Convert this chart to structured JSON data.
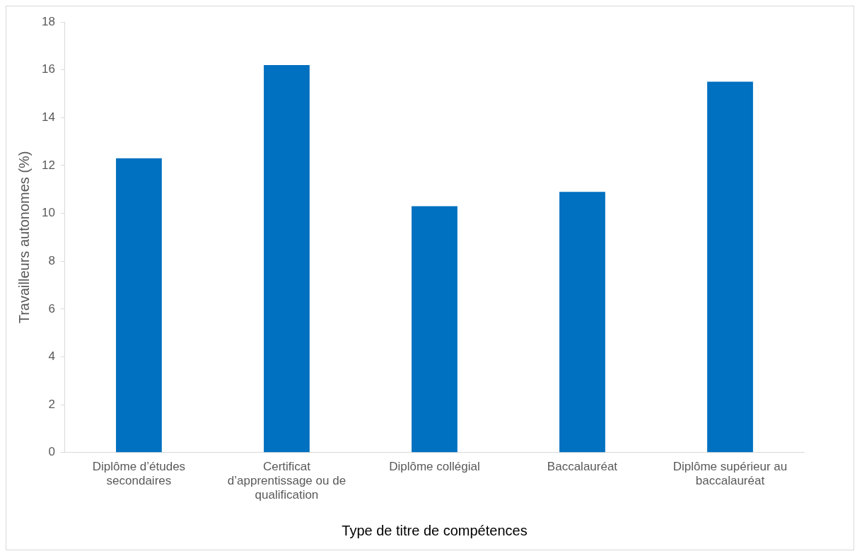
{
  "chart_data": {
    "type": "bar",
    "xlabel": "Type de titre de compétences",
    "ylabel": "Travailleurs autonomes (%)",
    "categories": [
      "Diplôme d’études secondaires",
      "Certificat d’apprentissage ou de qualification",
      "Diplôme collégial",
      "Baccalauréat",
      "Diplôme supérieur au baccalauréat"
    ],
    "values": [
      12.3,
      16.2,
      10.3,
      10.9,
      15.5
    ],
    "color": "#0070c0",
    "ylim": [
      0,
      18
    ],
    "yticks": [
      0,
      2,
      4,
      6,
      8,
      10,
      12,
      14,
      16,
      18
    ],
    "grid": false,
    "legend": false
  }
}
